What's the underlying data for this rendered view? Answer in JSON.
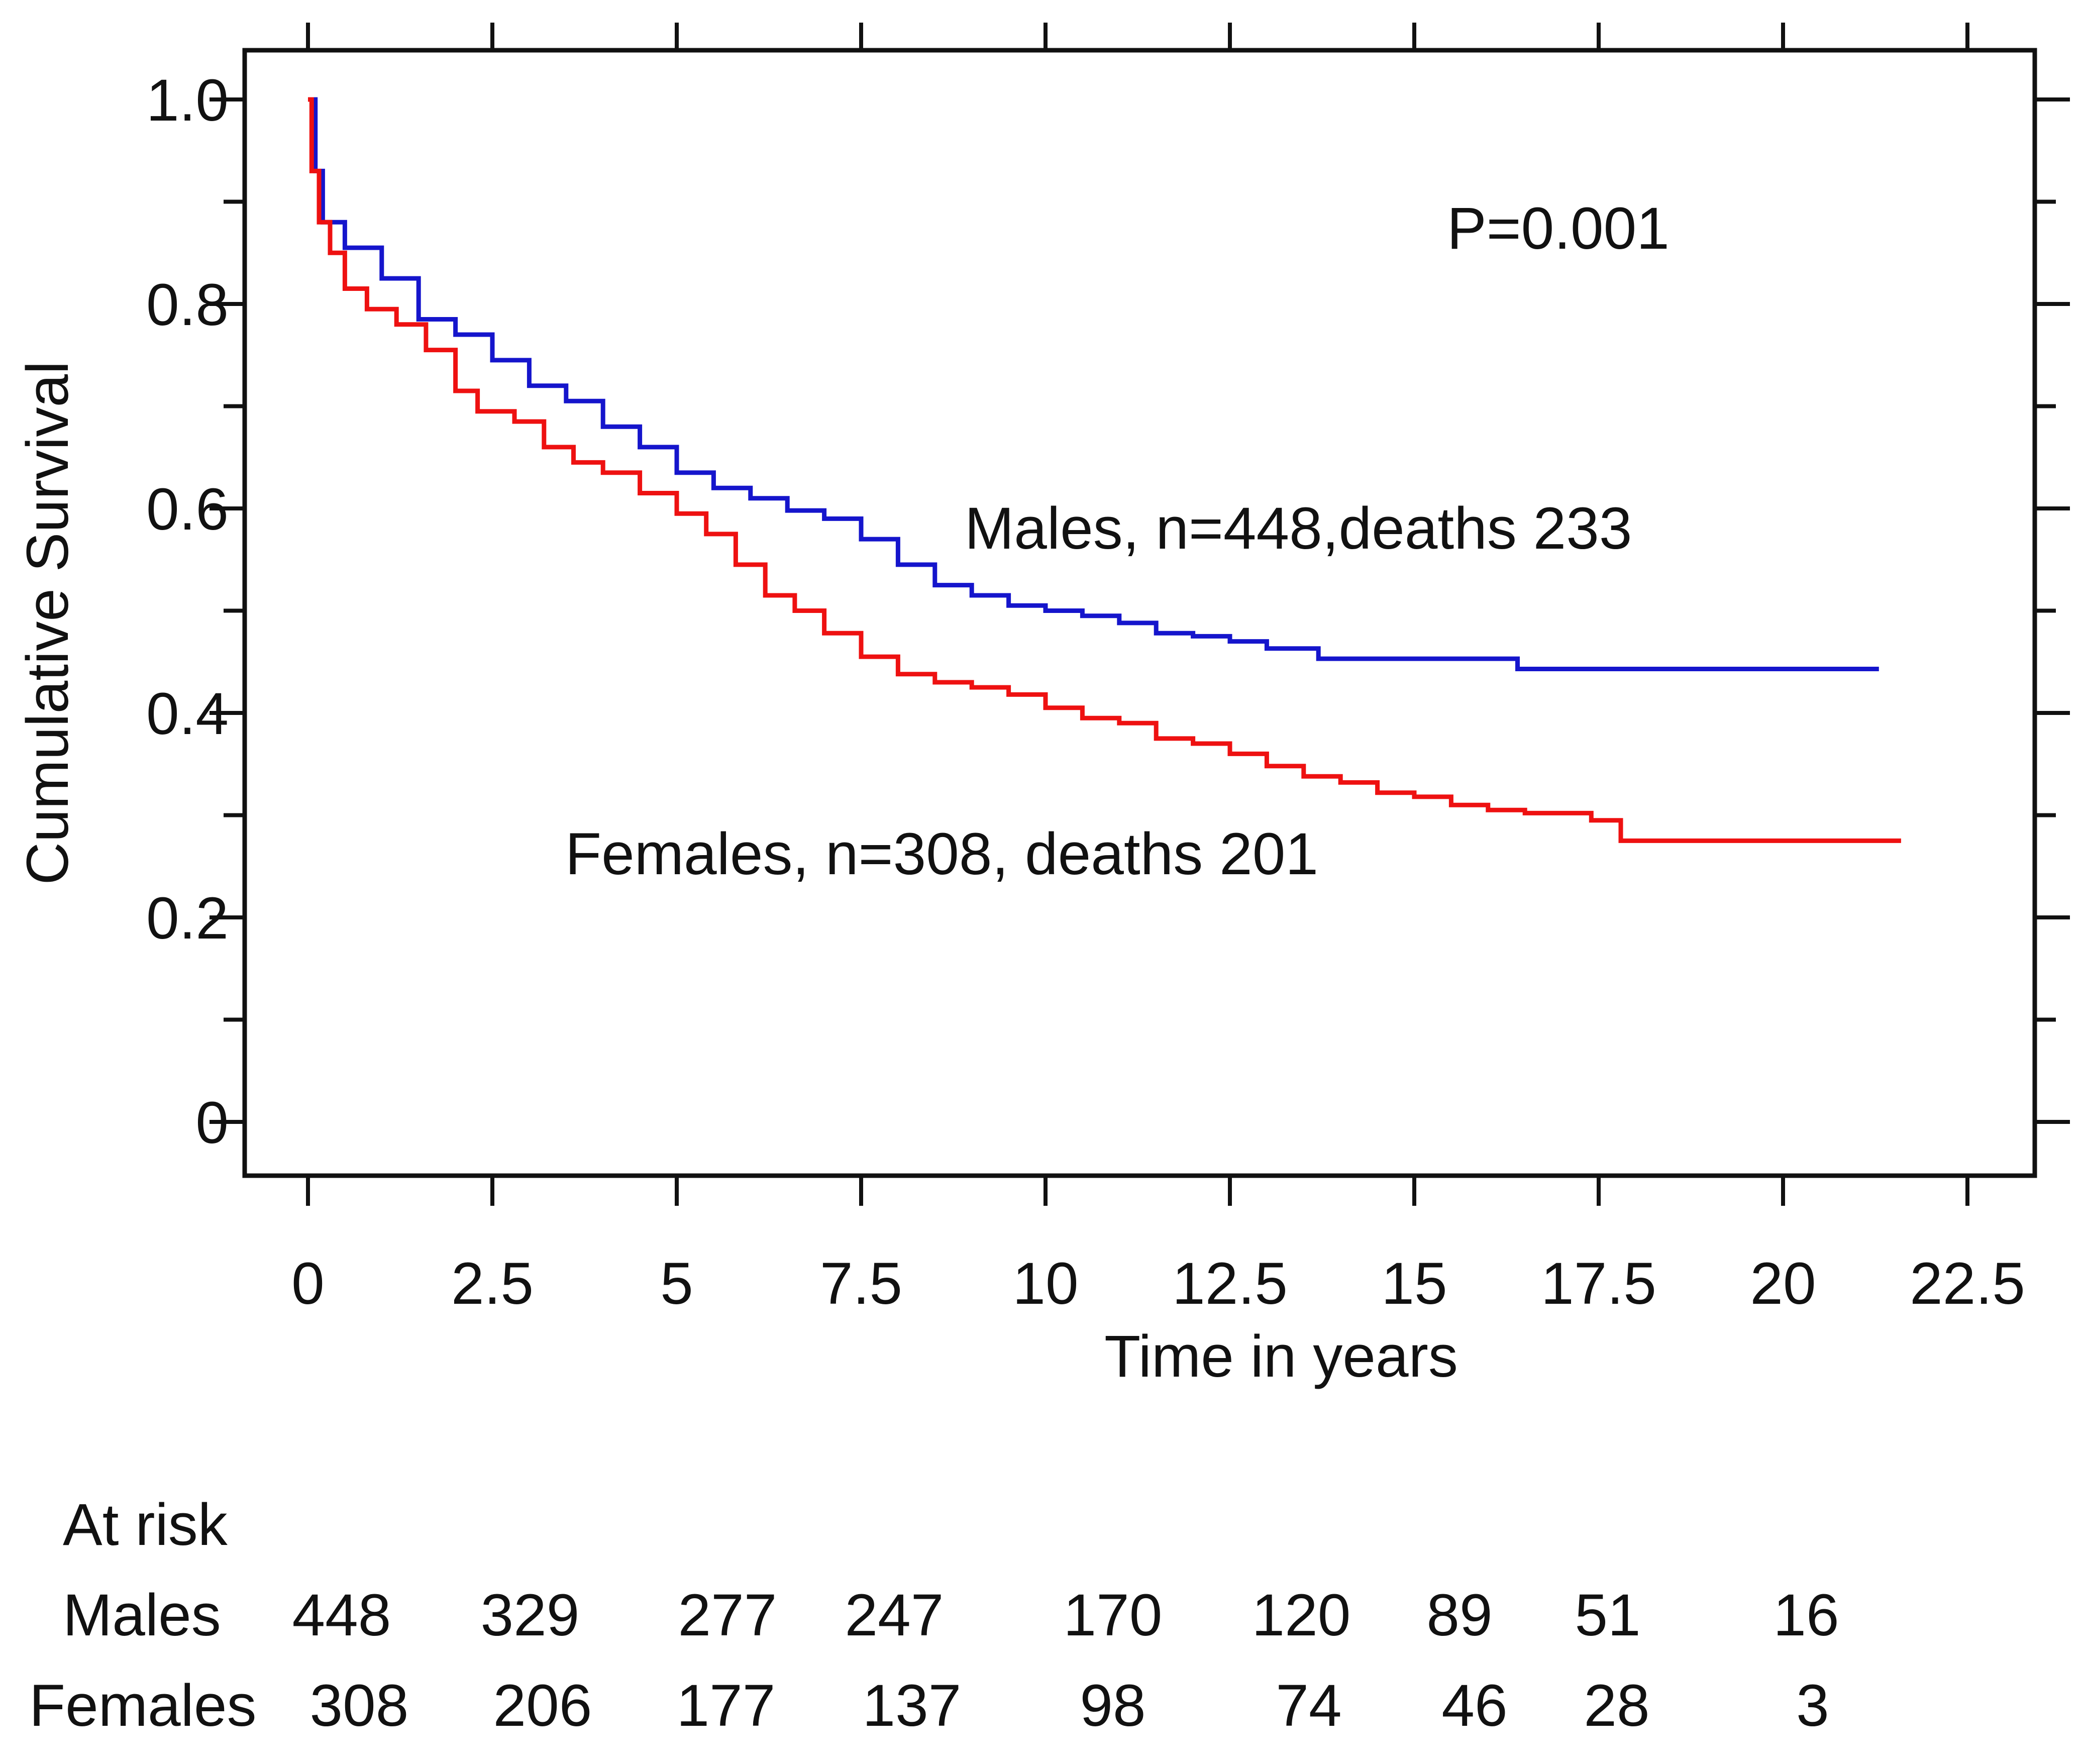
{
  "chart_data": {
    "type": "line",
    "title": "",
    "xlabel": "Time  in years",
    "ylabel": "Cumulative Survival",
    "xlim": [
      0,
      22.5
    ],
    "ylim": [
      0,
      1.0
    ],
    "x_ticks": [
      "0",
      "2.5",
      "5",
      "7.5",
      "10",
      "12.5",
      "15",
      "17.5",
      "20",
      "22.5"
    ],
    "x_tick_values": [
      0,
      2.5,
      5,
      7.5,
      10,
      12.5,
      15,
      17.5,
      20,
      22.5
    ],
    "y_ticks": [
      "0",
      "0.2",
      "0.4",
      "0.6",
      "0.8",
      "1.0"
    ],
    "y_tick_values": [
      0,
      0.2,
      0.4,
      0.6,
      0.8,
      1.0
    ],
    "annotations": {
      "p_value": "P=0.001",
      "males_label": "Males, n=448,deaths 233",
      "females_label": "Females, n=308, deaths 201"
    },
    "colors": {
      "males": "#1515cc",
      "females": "#ee1111",
      "axis": "#111111"
    },
    "series": [
      {
        "name": "Males",
        "color": "#1515cc",
        "x": [
          0,
          0.1,
          0.2,
          0.5,
          1.0,
          1.5,
          2.0,
          2.5,
          3.0,
          3.5,
          4.0,
          4.5,
          5.0,
          5.5,
          6.0,
          6.5,
          7.0,
          7.5,
          8.0,
          8.5,
          9.0,
          9.5,
          10.0,
          10.5,
          11.0,
          11.5,
          12.0,
          12.5,
          13.0,
          13.7,
          14.5,
          15.5,
          16.4,
          17.5,
          18.5,
          19.5,
          20.5,
          21.3
        ],
        "y": [
          1.0,
          0.93,
          0.88,
          0.855,
          0.825,
          0.785,
          0.77,
          0.745,
          0.72,
          0.705,
          0.68,
          0.66,
          0.635,
          0.62,
          0.61,
          0.598,
          0.59,
          0.57,
          0.545,
          0.525,
          0.515,
          0.505,
          0.5,
          0.495,
          0.488,
          0.478,
          0.475,
          0.47,
          0.463,
          0.453,
          0.453,
          0.453,
          0.443,
          0.443,
          0.443,
          0.443,
          0.443,
          0.443
        ]
      },
      {
        "name": "Females",
        "color": "#ee1111",
        "x": [
          0,
          0.05,
          0.15,
          0.3,
          0.5,
          0.8,
          1.2,
          1.6,
          2.0,
          2.3,
          2.8,
          3.2,
          3.6,
          4.0,
          4.5,
          5.0,
          5.4,
          5.8,
          6.2,
          6.6,
          7.0,
          7.5,
          8.0,
          8.5,
          9.0,
          9.5,
          10.0,
          10.5,
          11.0,
          11.5,
          12.0,
          12.5,
          13.0,
          13.5,
          14.0,
          14.5,
          15.0,
          15.5,
          16.0,
          16.5,
          17.0,
          17.4,
          17.8,
          18.5,
          19.5,
          20.5,
          21.6
        ],
        "y": [
          1.0,
          0.93,
          0.88,
          0.85,
          0.815,
          0.795,
          0.78,
          0.755,
          0.715,
          0.695,
          0.685,
          0.66,
          0.645,
          0.635,
          0.615,
          0.595,
          0.575,
          0.545,
          0.515,
          0.5,
          0.478,
          0.455,
          0.438,
          0.43,
          0.425,
          0.418,
          0.405,
          0.395,
          0.39,
          0.375,
          0.37,
          0.36,
          0.348,
          0.338,
          0.332,
          0.322,
          0.318,
          0.31,
          0.305,
          0.302,
          0.302,
          0.295,
          0.275,
          0.275,
          0.275,
          0.275,
          0.275
        ]
      }
    ],
    "at_risk": {
      "heading": "At risk",
      "rows": [
        {
          "label": "Males",
          "values": [
            "448",
            "329",
            "277",
            "247",
            "170",
            "120",
            "89",
            "51",
            "16"
          ]
        },
        {
          "label": "Females",
          "values": [
            "308",
            "206",
            "177",
            "137",
            "98",
            "74",
            "46",
            "28",
            "3"
          ]
        }
      ]
    }
  }
}
